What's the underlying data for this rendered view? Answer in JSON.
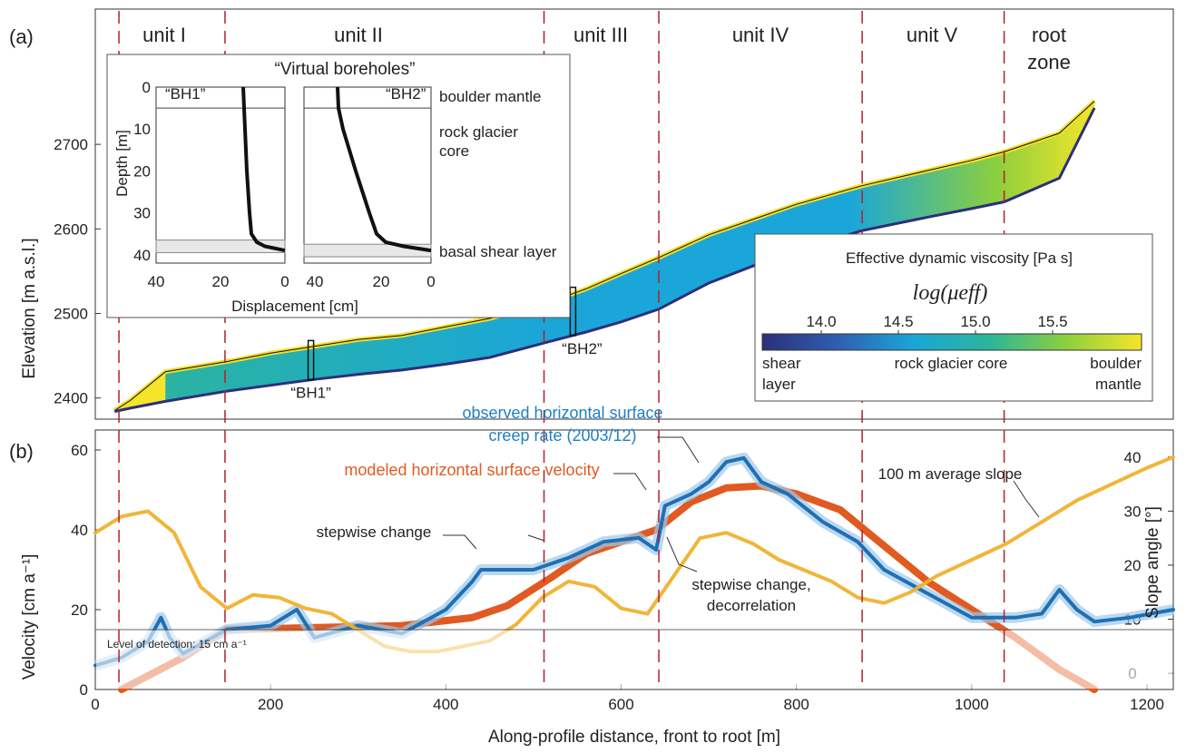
{
  "panel_labels": {
    "a": "(a)",
    "b": "(b)"
  },
  "units": [
    "unit I",
    "unit II",
    "unit III",
    "unit IV",
    "unit V"
  ],
  "root_zone": [
    "root",
    "zone"
  ],
  "inset": {
    "title": "“Virtual boreholes”",
    "bh1_label": "“BH1”",
    "bh2_label": "“BH2”",
    "ylabel": "Depth [m]",
    "xlabel": "Displacement [cm]",
    "layer_labels": [
      "boulder mantle",
      "rock glacier",
      "core",
      "basal shear layer"
    ]
  },
  "borehole_markers": {
    "bh1": "“BH1”",
    "bh2": "“BH2”"
  },
  "colorbar": {
    "title": "Effective dynamic viscosity [Pa s]",
    "log_label": "log(μeff)",
    "ticks": [
      "14.0",
      "14.5",
      "15.0",
      "15.5"
    ],
    "bottom_labels": [
      "shear",
      "layer",
      "rock glacier core",
      "boulder",
      "mantle"
    ],
    "colors": [
      "#2c2f7a",
      "#2f5fb0",
      "#1aa6d9",
      "#2cb59a",
      "#8ccf3e",
      "#f5e52a"
    ]
  },
  "annotations": {
    "observed": [
      "observed horizontal surface",
      "creep rate (2003/12)"
    ],
    "modeled": "modeled horizontal surface velocity",
    "slope": "100 m average slope",
    "step1": "stepwise change",
    "step2": [
      "stepwise change,",
      "decorrelation"
    ],
    "lod": "Level of detection: 15 cm a⁻¹"
  },
  "colors": {
    "observed": "#1f6fb4",
    "modeled": "#e05a22",
    "slope": "#f0b12e",
    "boundary": "#b3202a"
  },
  "chart_data": [
    {
      "type": "area",
      "title": "",
      "xlabel": "",
      "ylabel": "Elevation [m a.s.l.]",
      "xlim": [
        0,
        1230
      ],
      "ylim": [
        2375,
        2860
      ],
      "ytick_labels": [
        "2400",
        "2500",
        "2600",
        "2700"
      ],
      "unit_boundaries": [
        27,
        148,
        512,
        643,
        875,
        1037
      ],
      "profile_x": [
        22,
        40,
        80,
        150,
        200,
        250,
        300,
        350,
        400,
        450,
        512,
        560,
        600,
        643,
        700,
        750,
        800,
        875,
        950,
        1000,
        1037,
        1100,
        1140
      ],
      "profile_surface": [
        2384,
        2396,
        2430,
        2442,
        2452,
        2460,
        2468,
        2473,
        2483,
        2493,
        2510,
        2528,
        2546,
        2565,
        2592,
        2610,
        2628,
        2650,
        2668,
        2680,
        2690,
        2712,
        2750
      ],
      "profile_bed": [
        2384,
        2388,
        2396,
        2408,
        2415,
        2422,
        2428,
        2433,
        2440,
        2448,
        2465,
        2478,
        2490,
        2505,
        2536,
        2556,
        2575,
        2598,
        2614,
        2624,
        2632,
        2660,
        2743
      ],
      "boreholes": [
        {
          "name": "“BH1”",
          "x": 246
        },
        {
          "name": "“BH2”",
          "x": 545
        }
      ]
    },
    {
      "type": "line",
      "title": "",
      "xlabel": "Along-profile distance, front to root [m]",
      "ylabel": "Velocity [cm a⁻¹]",
      "y2label": "Slope angle [°]",
      "xlim": [
        0,
        1230
      ],
      "ylim": [
        0,
        65
      ],
      "y2lim": [
        -3,
        45
      ],
      "xtick_labels": [
        "0",
        "200",
        "400",
        "600",
        "800",
        "1000",
        "1200"
      ],
      "ytick_labels": [
        "0",
        "20",
        "40",
        "60"
      ],
      "y2tick_labels": [
        "0",
        "10",
        "20",
        "30",
        "40"
      ],
      "level_of_detection": 15,
      "series": [
        {
          "name": "modeled horizontal surface velocity",
          "axis": "left",
          "x": [
            30,
            100,
            150,
            250,
            350,
            430,
            470,
            520,
            560,
            600,
            640,
            680,
            720,
            760,
            800,
            850,
            900,
            950,
            1000,
            1050,
            1100,
            1140
          ],
          "y": [
            0,
            8,
            15,
            15.5,
            16,
            18,
            21,
            28,
            34,
            37,
            40,
            47,
            50.5,
            51,
            49,
            45,
            36,
            27,
            20,
            13,
            5,
            0
          ]
        },
        {
          "name": "observed horizontal surface creep rate (2003/12)",
          "axis": "left",
          "x": [
            0,
            30,
            60,
            75,
            85,
            100,
            150,
            200,
            230,
            250,
            300,
            350,
            400,
            430,
            440,
            460,
            500,
            540,
            580,
            620,
            640,
            650,
            680,
            700,
            720,
            740,
            760,
            790,
            830,
            870,
            900,
            950,
            1000,
            1050,
            1080,
            1100,
            1120,
            1140,
            1180,
            1230
          ],
          "y": [
            6,
            8,
            12,
            18,
            13,
            9,
            15,
            16,
            20,
            13,
            16,
            14,
            20,
            27,
            30,
            30,
            30,
            33,
            37,
            38,
            35,
            46,
            49,
            52,
            57,
            58,
            52,
            49,
            42,
            37,
            30,
            24,
            18,
            18,
            19,
            25,
            20,
            17,
            18,
            20
          ]
        },
        {
          "name": "100 m average slope",
          "axis": "right",
          "x": [
            0,
            30,
            60,
            90,
            120,
            150,
            180,
            210,
            240,
            270,
            300,
            330,
            360,
            390,
            420,
            450,
            480,
            510,
            540,
            570,
            600,
            630,
            660,
            690,
            720,
            750,
            780,
            810,
            840,
            870,
            900,
            930,
            960,
            1000,
            1040,
            1080,
            1120,
            1160,
            1200,
            1230
          ],
          "y": [
            26,
            29,
            30,
            26,
            16,
            12,
            14.5,
            14,
            12,
            11,
            8,
            5,
            4,
            4,
            5,
            6,
            9,
            14,
            17,
            16,
            12,
            11,
            18,
            25,
            26,
            24,
            21,
            19,
            17,
            14,
            13,
            15,
            18,
            21,
            24,
            28,
            32,
            35,
            38,
            40
          ]
        }
      ]
    }
  ]
}
